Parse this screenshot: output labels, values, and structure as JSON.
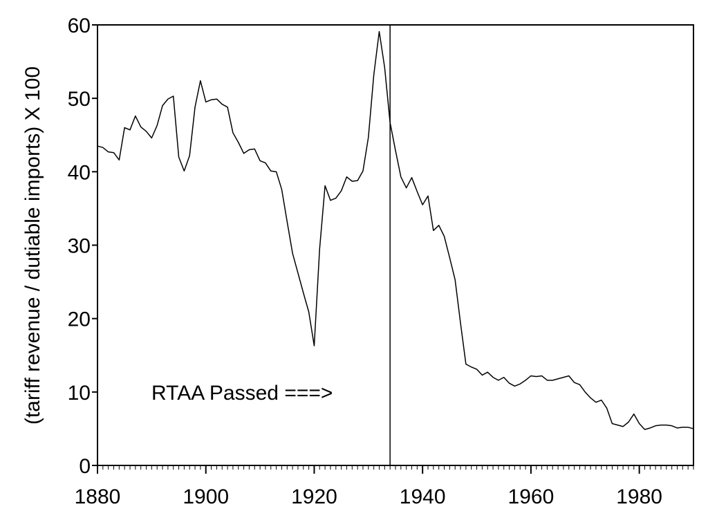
{
  "chart_data": {
    "type": "line",
    "title": "",
    "xlabel": "",
    "ylabel": "(tariff revenue / dutiable imports) X 100",
    "xlim": [
      1880,
      1990
    ],
    "ylim": [
      0,
      60
    ],
    "x_ticks": [
      1880,
      1900,
      1920,
      1940,
      1960,
      1980
    ],
    "y_ticks": [
      0,
      10,
      20,
      30,
      40,
      50,
      60
    ],
    "grid": false,
    "legend": "none",
    "line_color": "#000000",
    "annotations": [
      {
        "text": "RTAA Passed ===>",
        "vertical_line_x": 1934
      }
    ],
    "series": [
      {
        "x": [
          1880,
          1881,
          1882,
          1883,
          1884,
          1885,
          1886,
          1887,
          1888,
          1889,
          1890,
          1891,
          1892,
          1893,
          1894,
          1895,
          1896,
          1897,
          1898,
          1899,
          1900,
          1901,
          1902,
          1903,
          1904,
          1905,
          1906,
          1907,
          1908,
          1909,
          1910,
          1911,
          1912,
          1913,
          1914,
          1915,
          1916,
          1917,
          1918,
          1919,
          1920,
          1921,
          1922,
          1923,
          1924,
          1925,
          1926,
          1927,
          1928,
          1929,
          1930,
          1931,
          1932,
          1933,
          1934,
          1935,
          1936,
          1937,
          1938,
          1939,
          1940,
          1941,
          1942,
          1943,
          1944,
          1945,
          1946,
          1947,
          1948,
          1949,
          1950,
          1951,
          1952,
          1953,
          1954,
          1955,
          1956,
          1957,
          1958,
          1959,
          1960,
          1961,
          1962,
          1963,
          1964,
          1965,
          1966,
          1967,
          1968,
          1969,
          1970,
          1971,
          1972,
          1973,
          1974,
          1975,
          1976,
          1977,
          1978,
          1979,
          1980,
          1981,
          1982,
          1983,
          1984,
          1985,
          1986,
          1987,
          1988,
          1989,
          1990
        ],
        "values": [
          43.5,
          43.3,
          42.7,
          42.6,
          41.6,
          46.0,
          45.7,
          47.6,
          46.1,
          45.5,
          44.6,
          46.3,
          49.0,
          49.9,
          50.3,
          42.0,
          40.1,
          42.2,
          48.8,
          52.4,
          49.5,
          49.8,
          49.9,
          49.2,
          48.8,
          45.3,
          44.0,
          42.5,
          43.0,
          43.1,
          41.5,
          41.2,
          40.1,
          40.0,
          37.6,
          33.2,
          28.9,
          26.2,
          23.5,
          20.9,
          16.3,
          29.5,
          38.1,
          36.1,
          36.4,
          37.4,
          39.3,
          38.7,
          38.8,
          40.1,
          44.7,
          53.2,
          59.1,
          54.2,
          46.7,
          42.9,
          39.3,
          37.8,
          39.2,
          37.3,
          35.5,
          36.7,
          32.0,
          32.7,
          31.2,
          28.3,
          25.3,
          19.4,
          13.8,
          13.4,
          13.1,
          12.3,
          12.7,
          12.0,
          11.6,
          12.0,
          11.2,
          10.8,
          11.1,
          11.6,
          12.2,
          12.1,
          12.2,
          11.6,
          11.6,
          11.8,
          12.0,
          12.2,
          11.3,
          11.0,
          10.0,
          9.2,
          8.6,
          8.9,
          7.8,
          5.7,
          5.5,
          5.3,
          5.9,
          7.0,
          5.7,
          4.9,
          5.1,
          5.4,
          5.5,
          5.5,
          5.4,
          5.1,
          5.2,
          5.2,
          5.0
        ]
      }
    ]
  }
}
